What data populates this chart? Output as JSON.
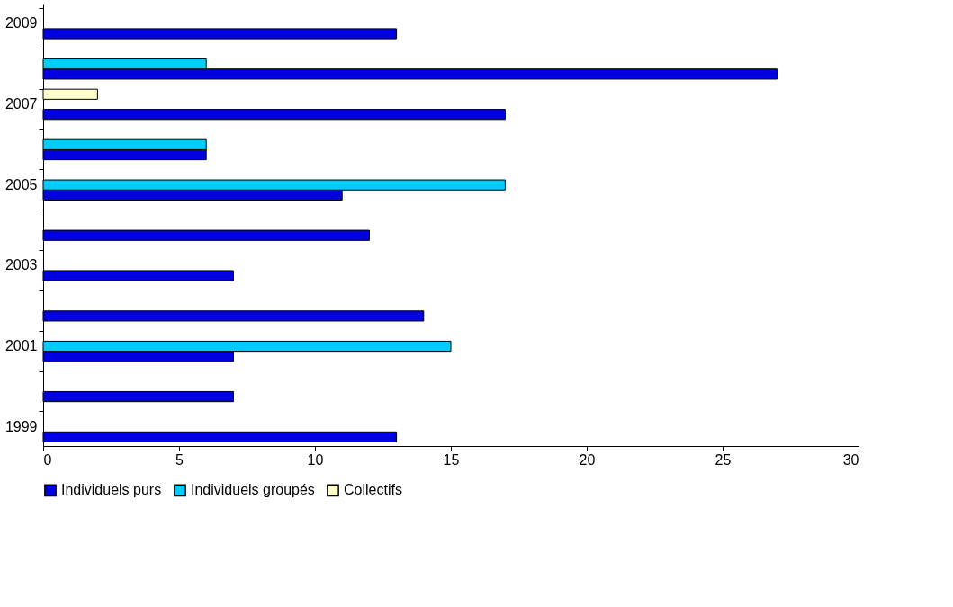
{
  "chart_data": {
    "type": "bar",
    "orientation": "horizontal",
    "categories": [
      "2009",
      null,
      "2007",
      null,
      "2005",
      null,
      "2003",
      null,
      "2001",
      null,
      "1999"
    ],
    "series": [
      {
        "name": "Individuels purs",
        "color": "#0000e0",
        "values": [
          13,
          27,
          17,
          6,
          11,
          12,
          7,
          14,
          7,
          7,
          13
        ]
      },
      {
        "name": "Individuels groupés",
        "color": "#00ccff",
        "values": [
          null,
          6,
          null,
          6,
          17,
          null,
          null,
          null,
          15,
          null,
          null
        ]
      },
      {
        "name": "Collectifs",
        "color": "#ffffcc",
        "values": [
          null,
          null,
          2,
          null,
          null,
          null,
          null,
          null,
          null,
          null,
          null
        ]
      }
    ],
    "xlim": [
      0,
      30
    ],
    "xticks": [
      0,
      5,
      10,
      15,
      20,
      25,
      30
    ],
    "grid": false,
    "legend": "bottom"
  }
}
